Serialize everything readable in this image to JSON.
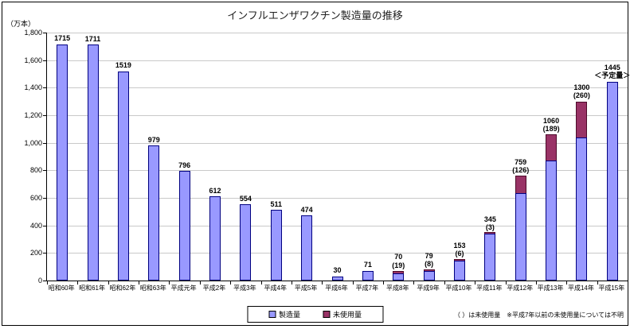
{
  "figure": {
    "title": "インフルエンザワクチン製造量の推移",
    "y_unit_label": "（万本）",
    "note": "（ ）は未使用量　※平成7年以前の未使用量については不明"
  },
  "legend": {
    "items": [
      {
        "label": "製造量",
        "color": "#9999ff"
      },
      {
        "label": "未使用量",
        "color": "#993366"
      }
    ]
  },
  "chart_data": {
    "type": "bar",
    "stacked": true,
    "title": "インフルエンザワクチン製造量の推移",
    "ylabel": "（万本）",
    "ylim": [
      0,
      1800
    ],
    "ytick_step": 200,
    "yticks": [
      "0",
      "200",
      "400",
      "600",
      "800",
      "1,000",
      "1,200",
      "1,400",
      "1,600",
      "1,800"
    ],
    "grid": true,
    "legend_position": "bottom",
    "categories": [
      "昭和60年",
      "昭和61年",
      "昭和62年",
      "昭和63年",
      "平成元年",
      "平成2年",
      "平成3年",
      "平成4年",
      "平成5年",
      "平成6年",
      "平成7年",
      "平成8年",
      "平成9年",
      "平成10年",
      "平成11年",
      "平成12年",
      "平成13年",
      "平成14年",
      "平成15年"
    ],
    "totals": [
      1715,
      1711,
      1519,
      979,
      796,
      612,
      554,
      511,
      474,
      30,
      71,
      70,
      79,
      153,
      345,
      759,
      1060,
      1300,
      1445
    ],
    "unused_in_parentheses": [
      null,
      null,
      null,
      null,
      null,
      null,
      null,
      null,
      null,
      null,
      null,
      19,
      8,
      6,
      3,
      126,
      189,
      260,
      null
    ],
    "series": [
      {
        "name": "製造量",
        "values": [
          1715,
          1711,
          1519,
          979,
          796,
          612,
          554,
          511,
          474,
          30,
          71,
          51,
          71,
          147,
          342,
          633,
          871,
          1040,
          1445
        ]
      },
      {
        "name": "未使用量",
        "values": [
          0,
          0,
          0,
          0,
          0,
          0,
          0,
          0,
          0,
          0,
          0,
          19,
          8,
          6,
          3,
          126,
          189,
          260,
          0
        ]
      }
    ],
    "bar_labels": [
      [
        "1715"
      ],
      [
        "1711"
      ],
      [
        "1519"
      ],
      [
        "979"
      ],
      [
        "796"
      ],
      [
        "612"
      ],
      [
        "554"
      ],
      [
        "511"
      ],
      [
        "474"
      ],
      [
        "30"
      ],
      [
        "71"
      ],
      [
        "70",
        "(19)"
      ],
      [
        "79",
        "(8)"
      ],
      [
        "153",
        "(6)"
      ],
      [
        "345",
        "(3)"
      ],
      [
        "759",
        "(126)"
      ],
      [
        "1060",
        "(189)"
      ],
      [
        "1300",
        "(260)"
      ],
      [
        "1445",
        "＜予定量＞"
      ]
    ],
    "colors": {
      "製造量": "#9999ff",
      "未使用量": "#993366"
    }
  }
}
